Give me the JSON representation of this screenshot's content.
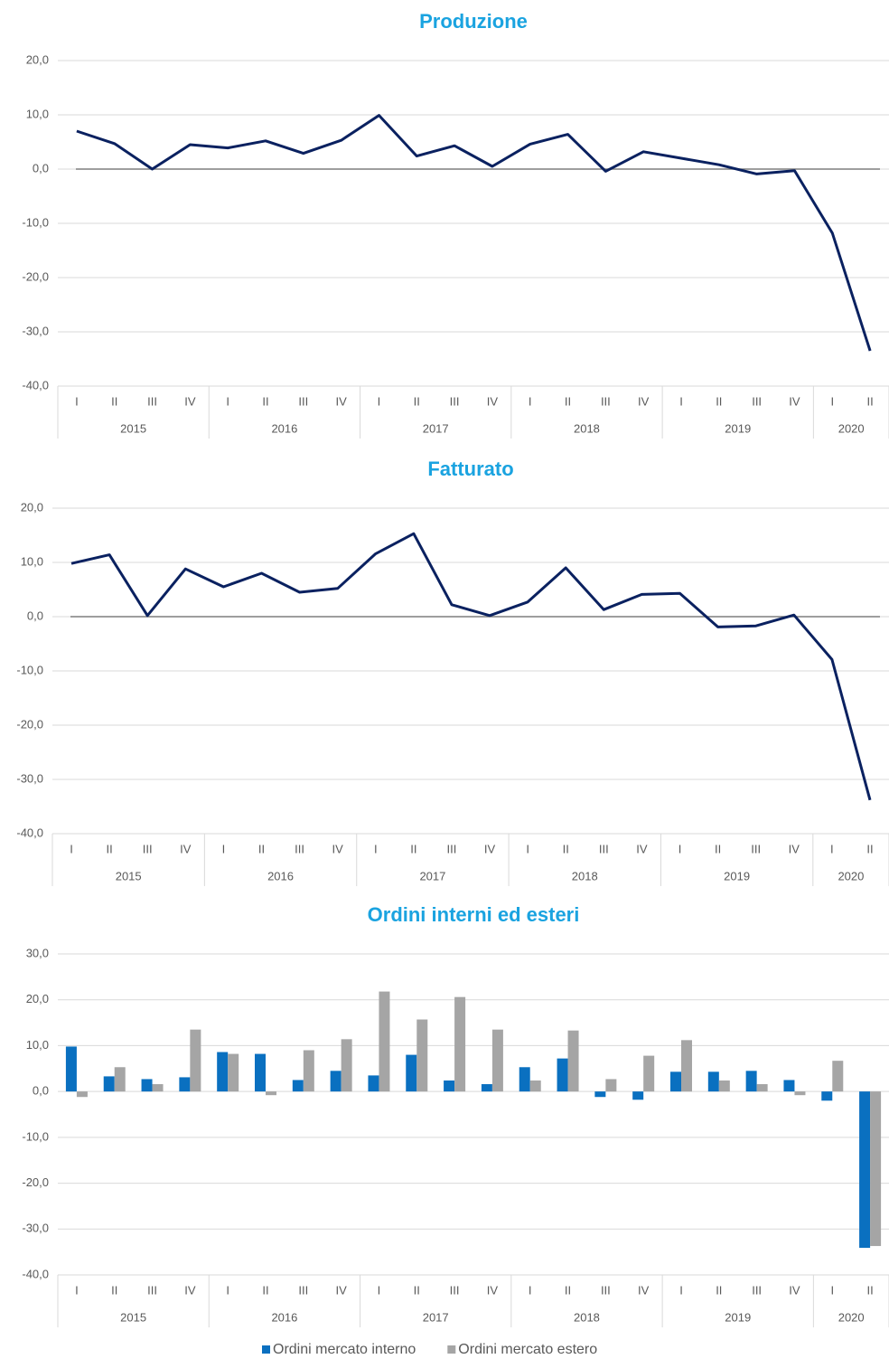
{
  "chart_data": [
    {
      "type": "line",
      "title": "Produzione",
      "title_color": "#1aa3e0",
      "groups": [
        {
          "label": "2015",
          "categories": [
            "I",
            "II",
            "III",
            "IV"
          ]
        },
        {
          "label": "2016",
          "categories": [
            "I",
            "II",
            "III",
            "IV"
          ]
        },
        {
          "label": "2017",
          "categories": [
            "I",
            "II",
            "III",
            "IV"
          ]
        },
        {
          "label": "2018",
          "categories": [
            "I",
            "II",
            "III",
            "IV"
          ]
        },
        {
          "label": "2019",
          "categories": [
            "I",
            "II",
            "III",
            "IV"
          ]
        },
        {
          "label": "2020",
          "categories": [
            "I",
            "II"
          ]
        }
      ],
      "values": [
        7.0,
        4.7,
        0.0,
        4.5,
        3.9,
        5.2,
        2.9,
        5.3,
        9.9,
        2.4,
        4.3,
        0.5,
        4.6,
        6.4,
        -0.4,
        3.2,
        2.0,
        0.8,
        -0.9,
        -0.3,
        -11.8,
        -33.5
      ],
      "color": "#0a2160",
      "ylim": [
        -40,
        20
      ],
      "yticks": [
        {
          "value": -40,
          "label": "-40,0"
        },
        {
          "value": -30,
          "label": "-30,0"
        },
        {
          "value": -20,
          "label": "-20,0"
        },
        {
          "value": -10,
          "label": "-10,0"
        },
        {
          "value": 0,
          "label": "0,0"
        },
        {
          "value": 10,
          "label": "10,0"
        },
        {
          "value": 20,
          "label": "20,0"
        }
      ],
      "grid": true
    },
    {
      "type": "line",
      "title": "Fatturato",
      "title_color": "#1aa3e0",
      "groups": [
        {
          "label": "2015",
          "categories": [
            "I",
            "II",
            "III",
            "IV"
          ]
        },
        {
          "label": "2016",
          "categories": [
            "I",
            "II",
            "III",
            "IV"
          ]
        },
        {
          "label": "2017",
          "categories": [
            "I",
            "II",
            "III",
            "IV"
          ]
        },
        {
          "label": "2018",
          "categories": [
            "I",
            "II",
            "III",
            "IV"
          ]
        },
        {
          "label": "2019",
          "categories": [
            "I",
            "II",
            "III",
            "IV"
          ]
        },
        {
          "label": "2020",
          "categories": [
            "I",
            "II"
          ]
        }
      ],
      "values": [
        9.8,
        11.4,
        0.2,
        8.8,
        5.5,
        8.0,
        4.5,
        5.2,
        11.6,
        15.3,
        2.2,
        0.2,
        2.7,
        9.0,
        1.3,
        4.1,
        4.3,
        -1.9,
        -1.7,
        0.3,
        -7.9,
        -33.8
      ],
      "color": "#0a2160",
      "ylim": [
        -40,
        20
      ],
      "yticks": [
        {
          "value": -40,
          "label": "-40,0"
        },
        {
          "value": -30,
          "label": "-30,0"
        },
        {
          "value": -20,
          "label": "-20,0"
        },
        {
          "value": -10,
          "label": "-10,0"
        },
        {
          "value": 0,
          "label": "0,0"
        },
        {
          "value": 10,
          "label": "10,0"
        },
        {
          "value": 20,
          "label": "20,0"
        }
      ],
      "grid": true
    },
    {
      "type": "bar",
      "title": "Ordini interni ed esteri",
      "title_color": "#1aa3e0",
      "groups": [
        {
          "label": "2015",
          "categories": [
            "I",
            "II",
            "III",
            "IV"
          ]
        },
        {
          "label": "2016",
          "categories": [
            "I",
            "II",
            "III",
            "IV"
          ]
        },
        {
          "label": "2017",
          "categories": [
            "I",
            "II",
            "III",
            "IV"
          ]
        },
        {
          "label": "2018",
          "categories": [
            "I",
            "II",
            "III",
            "IV"
          ]
        },
        {
          "label": "2019",
          "categories": [
            "I",
            "II",
            "III",
            "IV"
          ]
        },
        {
          "label": "2020",
          "categories": [
            "I",
            "II"
          ]
        }
      ],
      "series": [
        {
          "name": "Ordini mercato interno",
          "color": "#0a70c0",
          "values": [
            9.8,
            3.3,
            2.7,
            3.1,
            8.6,
            8.2,
            2.5,
            4.5,
            3.5,
            8.0,
            2.4,
            1.6,
            5.3,
            7.2,
            -1.2,
            -1.8,
            4.3,
            4.3,
            4.5,
            2.5,
            -2.0,
            -34.1
          ]
        },
        {
          "name": "Ordini mercato estero",
          "color": "#a5a5a5",
          "values": [
            -1.2,
            5.3,
            1.6,
            13.5,
            8.2,
            -0.8,
            9.0,
            11.4,
            21.8,
            15.7,
            20.6,
            13.5,
            2.4,
            13.3,
            2.7,
            7.8,
            11.2,
            2.4,
            1.6,
            -0.8,
            6.7,
            -33.7
          ]
        }
      ],
      "ylim": [
        -40,
        30
      ],
      "yticks": [
        {
          "value": -40,
          "label": "-40,0"
        },
        {
          "value": -30,
          "label": "-30,0"
        },
        {
          "value": -20,
          "label": "-20,0"
        },
        {
          "value": -10,
          "label": "-10,0"
        },
        {
          "value": 0,
          "label": "0,0"
        },
        {
          "value": 10,
          "label": "10,0"
        },
        {
          "value": 20,
          "label": "20,0"
        },
        {
          "value": 30,
          "label": "30,0"
        }
      ],
      "grid": true,
      "legend": "bottom"
    }
  ]
}
